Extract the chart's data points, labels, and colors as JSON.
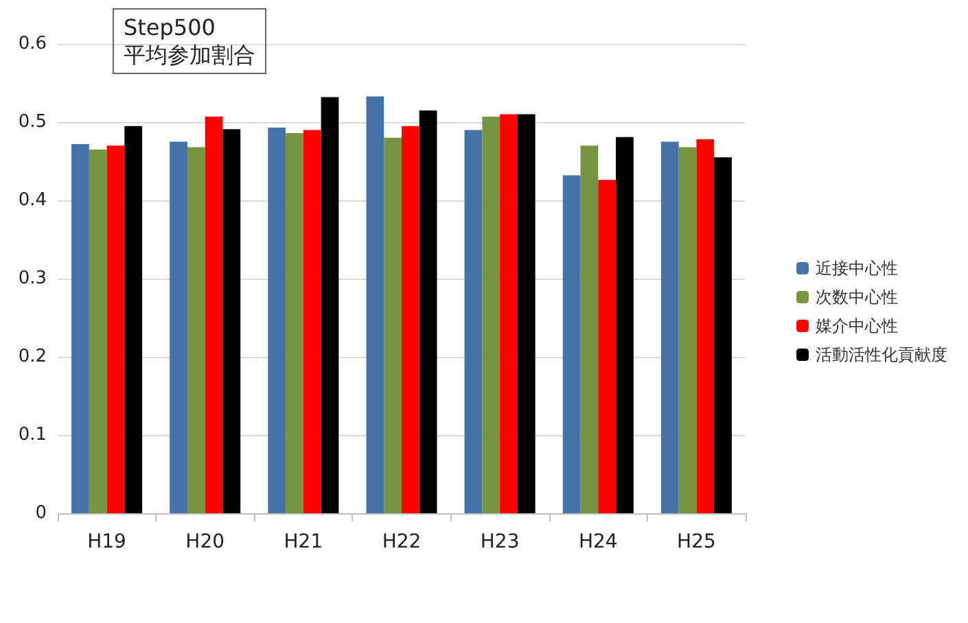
{
  "chart_data": {
    "type": "bar",
    "title": "Step500",
    "subtitle": "平均参加割合",
    "categories": [
      "H19",
      "H20",
      "H21",
      "H22",
      "H23",
      "H24",
      "H25"
    ],
    "series": [
      {
        "name": "近接中心性",
        "color": "#4572a7",
        "values": [
          0.472,
          0.475,
          0.493,
          0.533,
          0.49,
          0.432,
          0.475
        ]
      },
      {
        "name": "次数中心性",
        "color": "#779443",
        "values": [
          0.465,
          0.468,
          0.486,
          0.48,
          0.507,
          0.47,
          0.468
        ]
      },
      {
        "name": "媒介中心性",
        "color": "#ff0000",
        "values": [
          0.47,
          0.507,
          0.49,
          0.495,
          0.51,
          0.426,
          0.478
        ]
      },
      {
        "name": "活動活性化貢献度",
        "color": "#000000",
        "values": [
          0.495,
          0.491,
          0.532,
          0.515,
          0.51,
          0.481,
          0.455
        ]
      }
    ],
    "ylim": [
      0,
      0.6
    ],
    "yticks": [
      0,
      0.1,
      0.2,
      0.3,
      0.4,
      0.5,
      0.6
    ],
    "grid": "y",
    "legend": "right"
  }
}
